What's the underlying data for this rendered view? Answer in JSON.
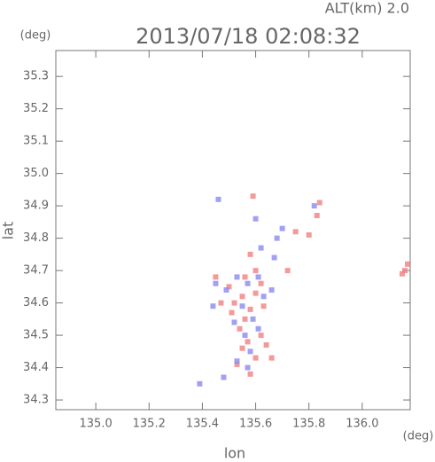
{
  "chart_data": {
    "type": "scatter",
    "annotation": "ALT(km) 2.0",
    "title": "2013/07/18 02:08:32",
    "y_unit": "(deg)",
    "x_unit": "(deg)",
    "ylabel": "lat",
    "xlabel": "lon",
    "xlim": [
      134.85,
      136.18
    ],
    "ylim": [
      34.27,
      35.38
    ],
    "xticks": [
      {
        "value": 135,
        "label": "135.0"
      },
      135.2,
      135.4,
      135.6,
      135.8,
      {
        "value": 136,
        "label": "136.0"
      }
    ],
    "yticks": [
      34.3,
      34.4,
      34.5,
      34.6,
      34.7,
      34.8,
      34.9,
      {
        "value": 35,
        "label": "35.0"
      },
      35.1,
      35.2,
      35.3
    ],
    "series": [
      {
        "color": "#f08080",
        "x": [
          135.55,
          135.52,
          135.58,
          135.6,
          135.56,
          135.54,
          135.57,
          135.55,
          135.62,
          135.64,
          135.6,
          135.66,
          135.53,
          135.58,
          135.5,
          135.47,
          135.62,
          135.6,
          135.58,
          135.72,
          135.8,
          135.83,
          135.84,
          135.59,
          135.45,
          135.63,
          135.51,
          136.16,
          136.17,
          136.15,
          135.75,
          135.56
        ],
        "y": [
          34.62,
          34.6,
          34.58,
          34.63,
          34.55,
          34.52,
          34.48,
          34.46,
          34.5,
          34.47,
          34.43,
          34.43,
          34.41,
          34.38,
          34.65,
          34.6,
          34.66,
          34.7,
          34.75,
          34.7,
          34.81,
          34.87,
          34.91,
          34.93,
          34.68,
          34.59,
          34.57,
          34.7,
          34.72,
          34.69,
          34.82,
          34.68
        ]
      },
      {
        "color": "#8a8af0",
        "x": [
          135.53,
          135.49,
          135.57,
          135.61,
          135.55,
          135.59,
          135.52,
          135.63,
          135.66,
          135.56,
          135.53,
          135.57,
          135.62,
          135.68,
          135.7,
          135.6,
          135.45,
          135.44,
          135.58,
          135.61,
          135.39,
          135.48,
          135.67,
          135.82,
          135.46
        ],
        "y": [
          34.68,
          34.64,
          34.66,
          34.68,
          34.59,
          34.55,
          34.54,
          34.62,
          34.64,
          34.5,
          34.42,
          34.4,
          34.77,
          34.8,
          34.83,
          34.86,
          34.66,
          34.59,
          34.45,
          34.52,
          34.35,
          34.37,
          34.74,
          34.9,
          34.92
        ]
      }
    ]
  }
}
